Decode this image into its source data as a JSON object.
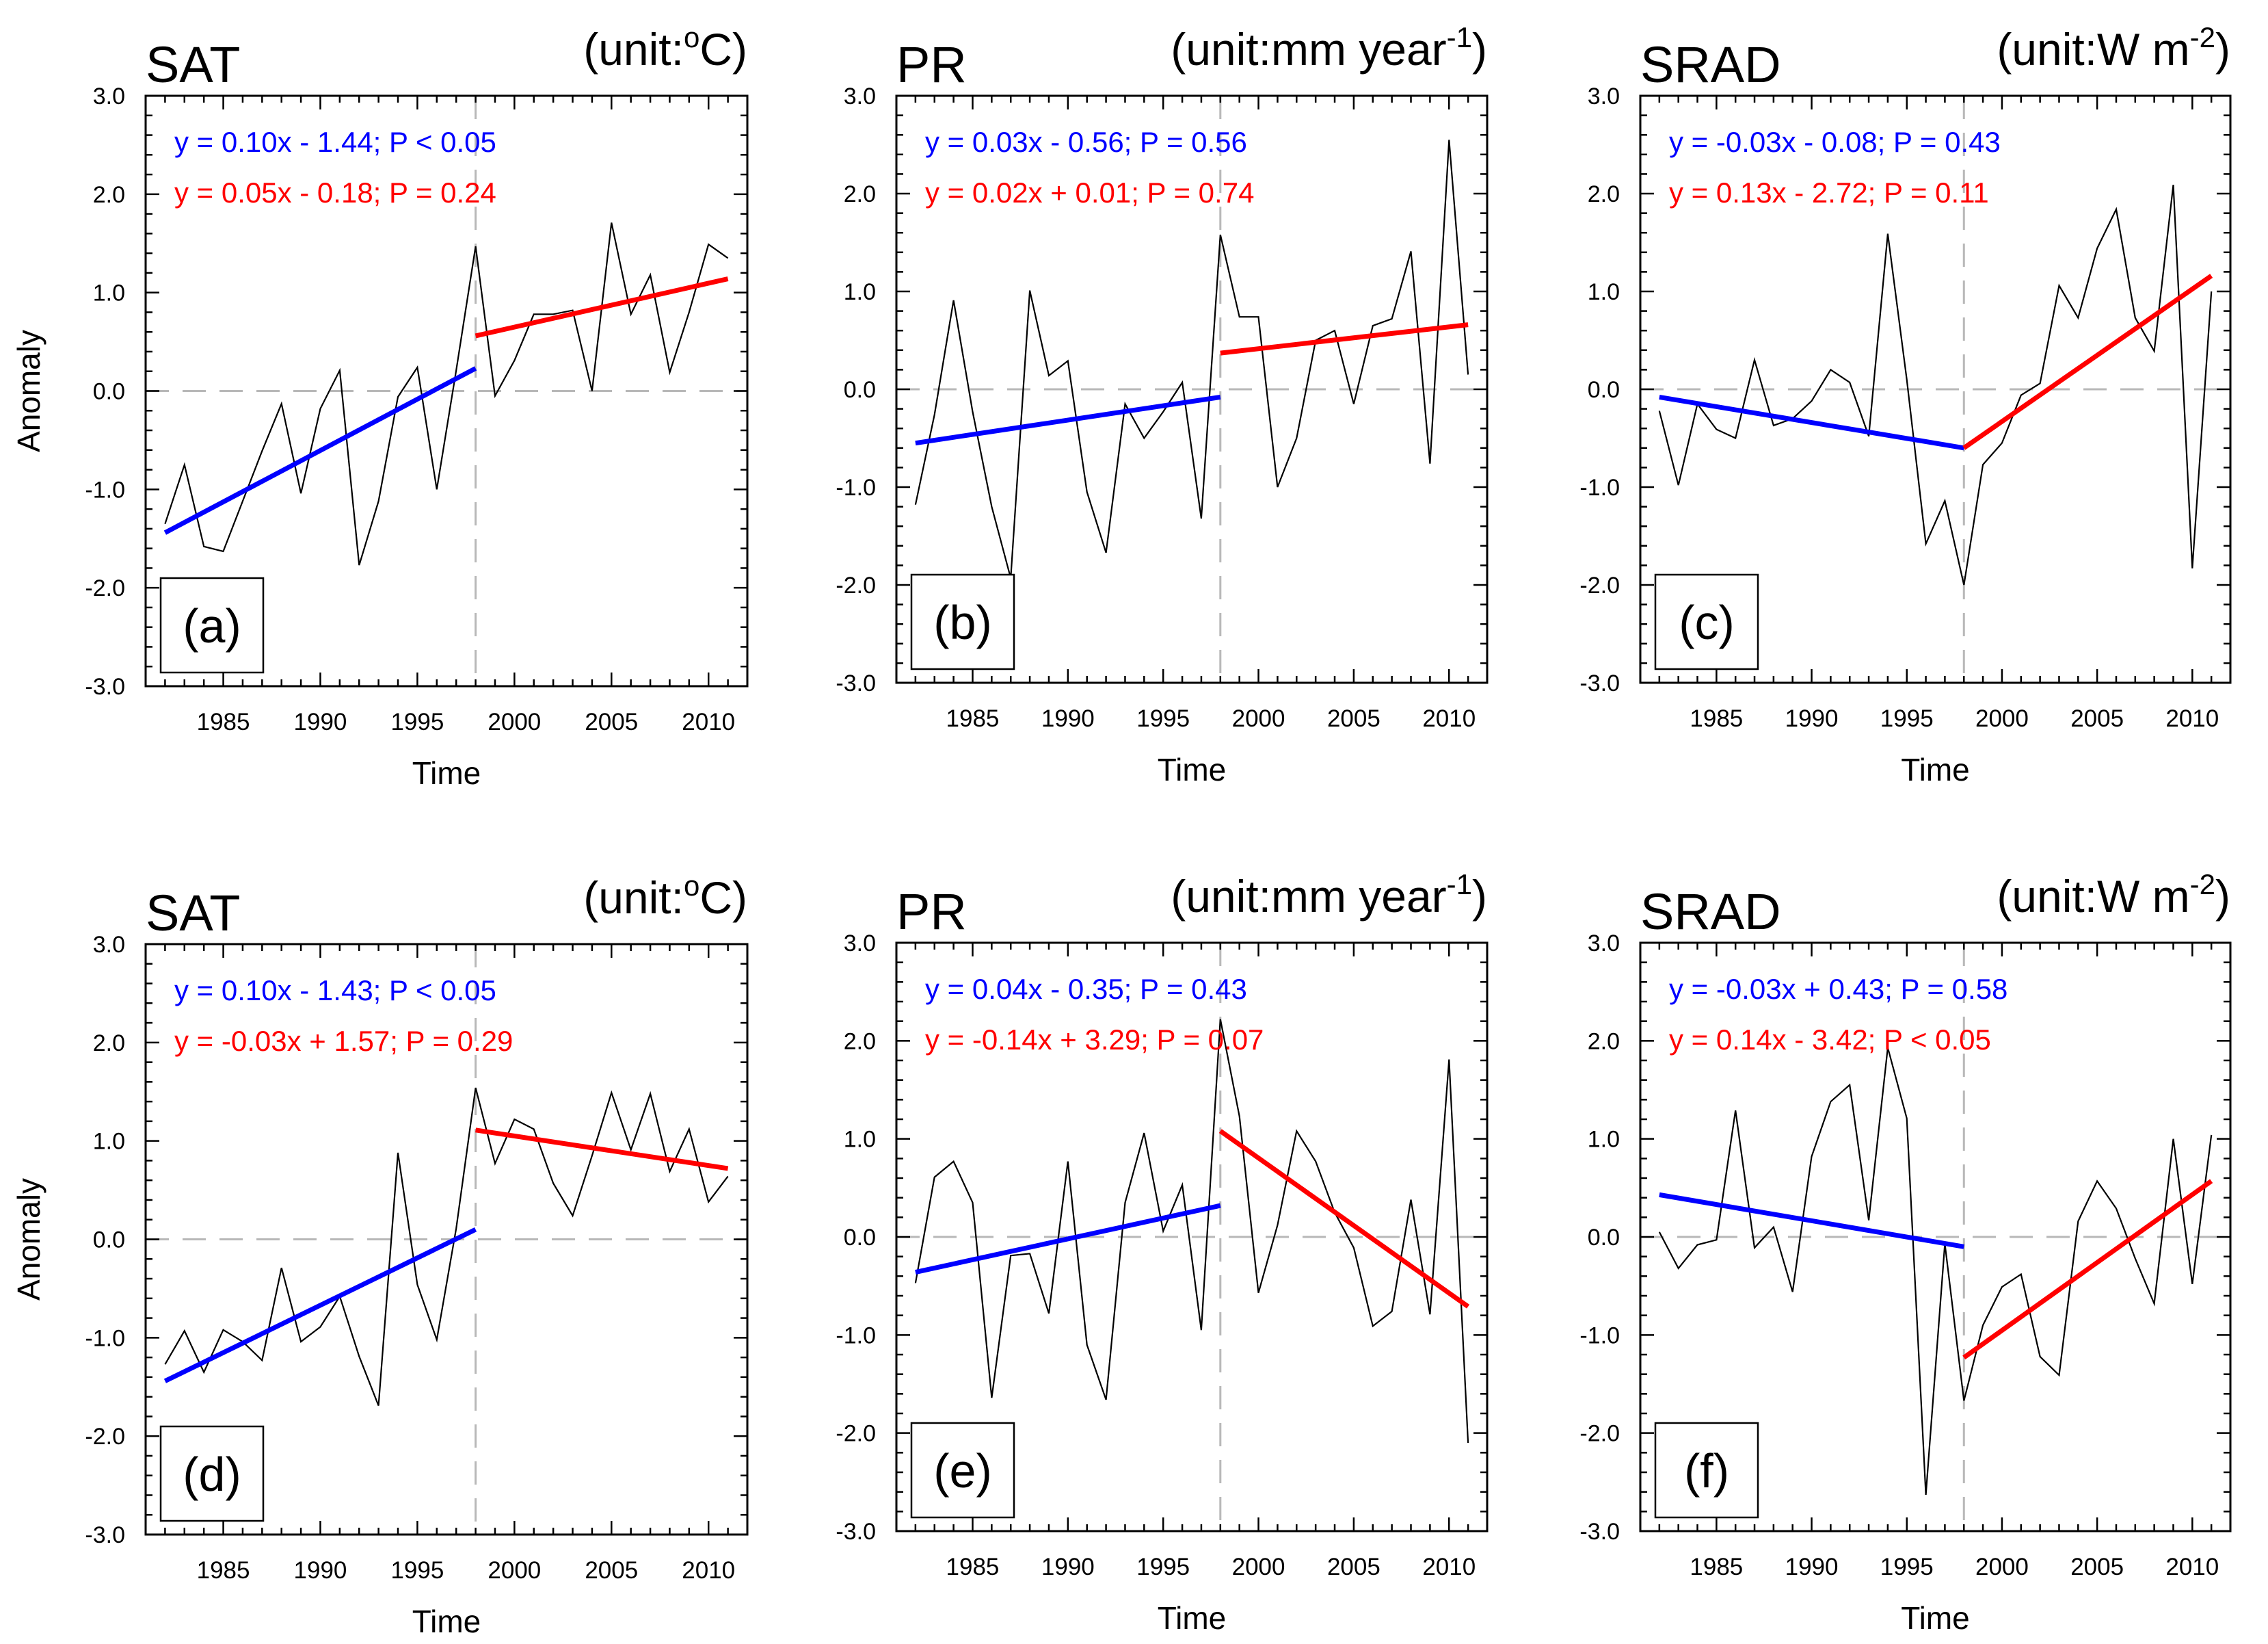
{
  "chart_data": [
    {
      "type": "line",
      "panel_label": "(a)",
      "title": "SAT",
      "unit_prefix": "(unit:",
      "unit_base": "",
      "unit_sup": "o",
      "unit_suffix": "C)",
      "xlabel": "Time",
      "ylabel": "Anomaly",
      "xlim": [
        1981,
        2012
      ],
      "ylim": [
        -3.0,
        3.0
      ],
      "xticks": [
        1985,
        1990,
        1995,
        2000,
        2005,
        2010
      ],
      "yticks": [
        "3.0",
        "2.0",
        "1.0",
        "0.0",
        "-1.0",
        "-2.0",
        "-3.0"
      ],
      "breakpoint": 1998,
      "x": [
        1982,
        1983,
        1984,
        1985,
        1986,
        1987,
        1988,
        1989,
        1990,
        1991,
        1992,
        1993,
        1994,
        1995,
        1996,
        1997,
        1998,
        1999,
        2000,
        2001,
        2002,
        2003,
        2004,
        2005,
        2006,
        2007,
        2008,
        2009,
        2010,
        2011
      ],
      "values": [
        -1.35,
        -0.75,
        -1.58,
        -1.63,
        -1.12,
        -0.61,
        -0.13,
        -1.04,
        -0.18,
        0.21,
        -1.77,
        -1.12,
        -0.06,
        0.24,
        -1.0,
        0.21,
        1.47,
        -0.05,
        0.31,
        0.78,
        0.78,
        0.82,
        0.0,
        1.71,
        0.78,
        1.18,
        0.19,
        0.8,
        1.49,
        1.35
      ],
      "fit1": {
        "color": "#0000ff",
        "x": [
          1982,
          1998
        ],
        "y": [
          -1.44,
          0.23
        ],
        "equation": "y = 0.10x - 1.44; P < 0.05"
      },
      "fit2": {
        "color": "#ff0000",
        "x": [
          1998,
          2011
        ],
        "y": [
          0.56,
          1.14
        ],
        "equation": "y = 0.05x - 0.18; P = 0.24"
      }
    },
    {
      "type": "line",
      "panel_label": "(b)",
      "title": "PR",
      "unit_prefix": "(unit:",
      "unit_base": "mm year",
      "unit_sup": "-1",
      "unit_suffix": ")",
      "xlabel": "Time",
      "ylabel": "",
      "xlim": [
        1981,
        2012
      ],
      "ylim": [
        -3.0,
        3.0
      ],
      "xticks": [
        1985,
        1990,
        1995,
        2000,
        2005,
        2010
      ],
      "yticks": [
        "3.0",
        "2.0",
        "1.0",
        "0.0",
        "-1.0",
        "-2.0",
        "-3.0"
      ],
      "breakpoint": 1998,
      "x": [
        1982,
        1983,
        1984,
        1985,
        1986,
        1987,
        1988,
        1989,
        1990,
        1991,
        1992,
        1993,
        1994,
        1995,
        1996,
        1997,
        1998,
        1999,
        2000,
        2001,
        2002,
        2003,
        2004,
        2005,
        2006,
        2007,
        2008,
        2009,
        2010,
        2011
      ],
      "values": [
        -1.18,
        -0.26,
        0.91,
        -0.23,
        -1.2,
        -1.93,
        1.01,
        0.14,
        0.29,
        -1.05,
        -1.67,
        -0.15,
        -0.5,
        -0.23,
        0.07,
        -1.32,
        1.58,
        0.74,
        0.74,
        -1.0,
        -0.5,
        0.5,
        0.6,
        -0.15,
        0.65,
        0.72,
        1.41,
        -0.76,
        2.55,
        0.15
      ],
      "fit1": {
        "color": "#0000ff",
        "x": [
          1982,
          1998
        ],
        "y": [
          -0.55,
          -0.08
        ],
        "equation": "y = 0.03x - 0.56; P = 0.56"
      },
      "fit2": {
        "color": "#ff0000",
        "x": [
          1998,
          2011
        ],
        "y": [
          0.37,
          0.66
        ],
        "equation": "y = 0.02x + 0.01; P = 0.74"
      }
    },
    {
      "type": "line",
      "panel_label": "(c)",
      "title": "SRAD",
      "unit_prefix": "(unit:",
      "unit_base": "W m",
      "unit_sup": "-2",
      "unit_suffix": ")",
      "xlabel": "Time",
      "ylabel": "",
      "xlim": [
        1981,
        2012
      ],
      "ylim": [
        -3.0,
        3.0
      ],
      "xticks": [
        1985,
        1990,
        1995,
        2000,
        2005,
        2010
      ],
      "yticks": [
        "3.0",
        "2.0",
        "1.0",
        "0.0",
        "-1.0",
        "-2.0",
        "-3.0"
      ],
      "breakpoint": 1998,
      "x": [
        1982,
        1983,
        1984,
        1985,
        1986,
        1987,
        1988,
        1989,
        1990,
        1991,
        1992,
        1993,
        1994,
        1995,
        1996,
        1997,
        1998,
        1999,
        2000,
        2001,
        2002,
        2003,
        2004,
        2005,
        2006,
        2007,
        2008,
        2009,
        2010,
        2011
      ],
      "values": [
        -0.22,
        -0.98,
        -0.15,
        -0.41,
        -0.5,
        0.3,
        -0.37,
        -0.3,
        -0.12,
        0.2,
        0.07,
        -0.48,
        1.59,
        0.1,
        -1.58,
        -1.14,
        -2.0,
        -0.77,
        -0.55,
        -0.06,
        0.06,
        1.06,
        0.73,
        1.44,
        1.84,
        0.73,
        0.39,
        2.09,
        -1.83,
        1.0
      ],
      "fit1": {
        "color": "#0000ff",
        "x": [
          1982,
          1998
        ],
        "y": [
          -0.08,
          -0.6
        ],
        "equation": "y = -0.03x - 0.08; P = 0.43"
      },
      "fit2": {
        "color": "#ff0000",
        "x": [
          1998,
          2011
        ],
        "y": [
          -0.6,
          1.16
        ],
        "equation": "y = 0.13x - 2.72; P = 0.11"
      }
    },
    {
      "type": "line",
      "panel_label": "(d)",
      "title": "SAT",
      "unit_prefix": "(unit:",
      "unit_base": "",
      "unit_sup": "o",
      "unit_suffix": "C)",
      "xlabel": "Time",
      "ylabel": "Anomaly",
      "xlim": [
        1981,
        2012
      ],
      "ylim": [
        -3.0,
        3.0
      ],
      "xticks": [
        1985,
        1990,
        1995,
        2000,
        2005,
        2010
      ],
      "yticks": [
        "3.0",
        "2.0",
        "1.0",
        "0.0",
        "-1.0",
        "-2.0",
        "-3.0"
      ],
      "breakpoint": 1998,
      "x": [
        1982,
        1983,
        1984,
        1985,
        1986,
        1987,
        1988,
        1989,
        1990,
        1991,
        1992,
        1993,
        1994,
        1995,
        1996,
        1997,
        1998,
        1999,
        2000,
        2001,
        2002,
        2003,
        2004,
        2005,
        2006,
        2007,
        2008,
        2009,
        2010,
        2011
      ],
      "values": [
        -1.27,
        -0.93,
        -1.35,
        -0.92,
        -1.04,
        -1.23,
        -0.29,
        -1.04,
        -0.89,
        -0.58,
        -1.19,
        -1.69,
        0.88,
        -0.46,
        -1.02,
        0.11,
        1.54,
        0.77,
        1.22,
        1.12,
        0.57,
        0.24,
        0.85,
        1.49,
        0.91,
        1.48,
        0.69,
        1.12,
        0.38,
        0.64
      ],
      "fit1": {
        "color": "#0000ff",
        "x": [
          1982,
          1998
        ],
        "y": [
          -1.44,
          0.1
        ],
        "equation": "y = 0.10x - 1.43; P < 0.05"
      },
      "fit2": {
        "color": "#ff0000",
        "x": [
          1998,
          2011
        ],
        "y": [
          1.11,
          0.72
        ],
        "equation": "y = -0.03x + 1.57; P = 0.29"
      }
    },
    {
      "type": "line",
      "panel_label": "(e)",
      "title": "PR",
      "unit_prefix": "(unit:",
      "unit_base": "mm year",
      "unit_sup": "-1",
      "unit_suffix": ")",
      "xlabel": "Time",
      "ylabel": "",
      "xlim": [
        1981,
        2012
      ],
      "ylim": [
        -3.0,
        3.0
      ],
      "xticks": [
        1985,
        1990,
        1995,
        2000,
        2005,
        2010
      ],
      "yticks": [
        "3.0",
        "2.0",
        "1.0",
        "0.0",
        "-1.0",
        "-2.0",
        "-3.0"
      ],
      "breakpoint": 1998,
      "x": [
        1982,
        1983,
        1984,
        1985,
        1986,
        1987,
        1988,
        1989,
        1990,
        1991,
        1992,
        1993,
        1994,
        1995,
        1996,
        1997,
        1998,
        1999,
        2000,
        2001,
        2002,
        2003,
        2004,
        2005,
        2006,
        2007,
        2008,
        2009,
        2010,
        2011
      ],
      "values": [
        -0.47,
        0.61,
        0.77,
        0.35,
        -1.64,
        -0.19,
        -0.17,
        -0.78,
        0.77,
        -1.1,
        -1.66,
        0.35,
        1.06,
        0.06,
        0.53,
        -0.95,
        2.22,
        1.23,
        -0.57,
        0.12,
        1.08,
        0.77,
        0.25,
        -0.11,
        -0.91,
        -0.76,
        0.38,
        -0.79,
        1.81,
        -2.1
      ],
      "fit1": {
        "color": "#0000ff",
        "x": [
          1982,
          1998
        ],
        "y": [
          -0.36,
          0.32
        ],
        "equation": "y = 0.04x - 0.35; P = 0.43"
      },
      "fit2": {
        "color": "#ff0000",
        "x": [
          1998,
          2011
        ],
        "y": [
          1.08,
          -0.71
        ],
        "equation": "y = -0.14x + 3.29; P = 0.07"
      }
    },
    {
      "type": "line",
      "panel_label": "(f)",
      "title": "SRAD",
      "unit_prefix": "(unit:",
      "unit_base": "W m",
      "unit_sup": "-2",
      "unit_suffix": ")",
      "xlabel": "Time",
      "ylabel": "",
      "xlim": [
        1981,
        2012
      ],
      "ylim": [
        -3.0,
        3.0
      ],
      "xticks": [
        1985,
        1990,
        1995,
        2000,
        2005,
        2010
      ],
      "yticks": [
        "3.0",
        "2.0",
        "1.0",
        "0.0",
        "-1.0",
        "-2.0",
        "-3.0"
      ],
      "breakpoint": 1998,
      "x": [
        1982,
        1983,
        1984,
        1985,
        1986,
        1987,
        1988,
        1989,
        1990,
        1991,
        1992,
        1993,
        1994,
        1995,
        1996,
        1997,
        1998,
        1999,
        2000,
        2001,
        2002,
        2003,
        2004,
        2005,
        2006,
        2007,
        2008,
        2009,
        2010,
        2011
      ],
      "values": [
        0.05,
        -0.32,
        -0.08,
        -0.03,
        1.29,
        -0.11,
        0.1,
        -0.56,
        0.82,
        1.38,
        1.55,
        0.17,
        1.93,
        1.21,
        -2.63,
        -0.07,
        -1.67,
        -0.9,
        -0.51,
        -0.38,
        -1.22,
        -1.41,
        0.16,
        0.57,
        0.29,
        -0.22,
        -0.68,
        1.0,
        -0.48,
        1.04
      ],
      "fit1": {
        "color": "#0000ff",
        "x": [
          1982,
          1998
        ],
        "y": [
          0.43,
          -0.1
        ],
        "equation": "y = -0.03x + 0.43; P = 0.58"
      },
      "fit2": {
        "color": "#ff0000",
        "x": [
          1998,
          2011
        ],
        "y": [
          -1.23,
          0.57
        ],
        "equation": "y = 0.14x - 3.42; P < 0.05"
      }
    }
  ]
}
